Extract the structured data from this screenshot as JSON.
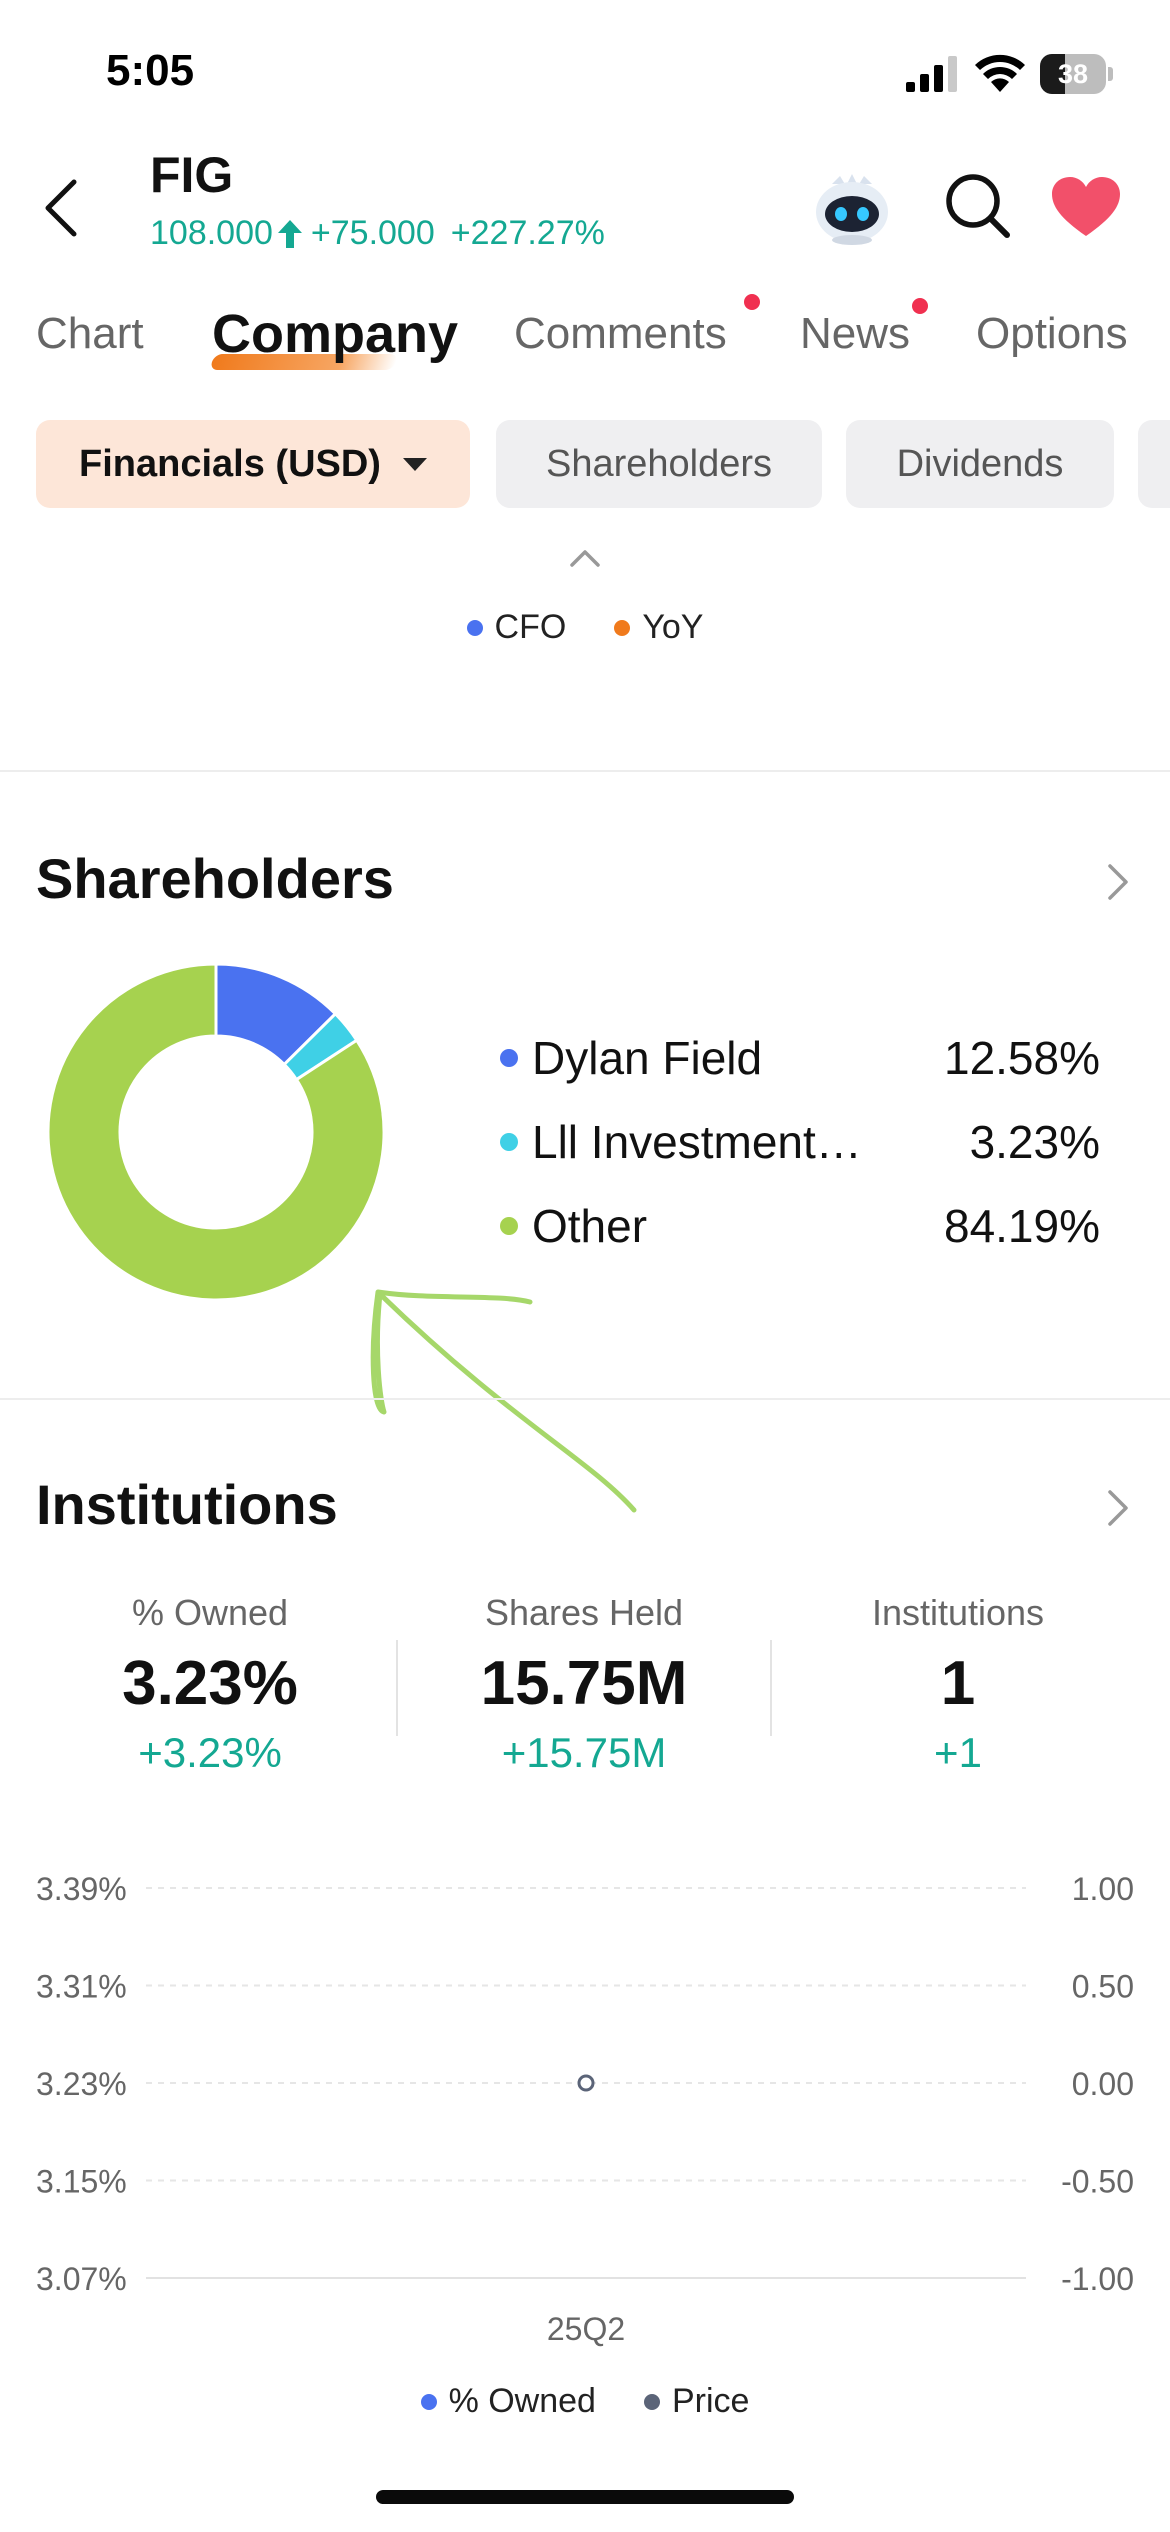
{
  "status_bar": {
    "time": "5:05",
    "battery": "38",
    "battery_level": 0.38
  },
  "header": {
    "ticker": "FIG",
    "price": "108.000",
    "change": "+75.000",
    "change_pct": "+227.27%",
    "colors": {
      "up": "#14a892",
      "heart": "#f2506a"
    }
  },
  "tabs": [
    {
      "label": "Chart",
      "active": false,
      "badge": false
    },
    {
      "label": "Company",
      "active": true,
      "badge": false
    },
    {
      "label": "Comments",
      "active": false,
      "badge": true
    },
    {
      "label": "News",
      "active": false,
      "badge": true
    },
    {
      "label": "Options",
      "active": false,
      "badge": false
    }
  ],
  "chips": [
    {
      "label": "Financials (USD)",
      "active": true
    },
    {
      "label": "Shareholders",
      "active": false
    },
    {
      "label": "Dividends",
      "active": false
    }
  ],
  "cfo_legend": [
    {
      "label": "CFO",
      "color": "#4a72f0"
    },
    {
      "label": "YoY",
      "color": "#f07a1c"
    }
  ],
  "shareholders": {
    "title": "Shareholders",
    "items": [
      {
        "name": "Dylan Field",
        "pct": "12.58%",
        "value": 12.58,
        "color": "#4a72f0"
      },
      {
        "name": "Lll Investment…",
        "pct": "3.23%",
        "value": 3.23,
        "color": "#3fd0e6"
      },
      {
        "name": "Other",
        "pct": "84.19%",
        "value": 84.19,
        "color": "#a6d24f"
      }
    ]
  },
  "institutions": {
    "title": "Institutions",
    "stats": [
      {
        "label": "% Owned",
        "value": "3.23%",
        "change": "+3.23%"
      },
      {
        "label": "Shares Held",
        "value": "15.75M",
        "change": "+15.75M"
      },
      {
        "label": "Institutions",
        "value": "1",
        "change": "+1"
      }
    ]
  },
  "chart_data": {
    "type": "line",
    "title": "",
    "categories": [
      "25Q2"
    ],
    "series": [
      {
        "name": "% Owned",
        "axis": "left",
        "values": [
          3.23
        ],
        "color": "#4a72f0"
      },
      {
        "name": "Price",
        "axis": "right",
        "values": [
          0.0
        ],
        "color": "#5b6478"
      }
    ],
    "y_left_ticks": [
      "3.39%",
      "3.31%",
      "3.23%",
      "3.15%",
      "3.07%"
    ],
    "y_right_ticks": [
      "1.00",
      "0.50",
      "0.00",
      "-0.50",
      "-1.00"
    ],
    "y_left_lim": [
      3.07,
      3.39
    ],
    "y_right_lim": [
      -1.0,
      1.0
    ],
    "grid": true,
    "legend": "bottom"
  }
}
